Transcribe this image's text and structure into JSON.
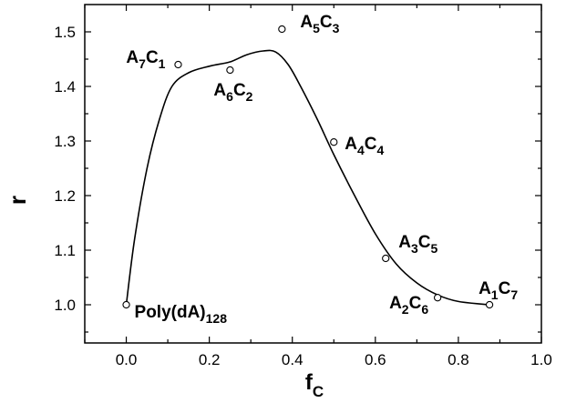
{
  "chart_data": {
    "type": "scatter",
    "title": "",
    "xlabel": {
      "main": "f",
      "sub": "C"
    },
    "ylabel": "r",
    "xlim": [
      -0.1,
      1.0
    ],
    "ylim": [
      0.93,
      1.55
    ],
    "x_ticks": [
      0.0,
      0.2,
      0.4,
      0.6,
      0.8,
      1.0
    ],
    "x_tick_labels": [
      "0.0",
      "0.2",
      "0.4",
      "0.6",
      "0.8",
      "1.0"
    ],
    "y_ticks": [
      1.0,
      1.1,
      1.2,
      1.3,
      1.4,
      1.5
    ],
    "y_tick_labels": [
      "1.0",
      "1.1",
      "1.2",
      "1.3",
      "1.4",
      "1.5"
    ],
    "grid": false,
    "points": [
      {
        "x": 0.0,
        "y": 1.0,
        "label": [
          [
            "Poly(dA)",
            false
          ],
          [
            "128",
            true
          ]
        ]
      },
      {
        "x": 0.125,
        "y": 1.44,
        "label": [
          [
            "A",
            false
          ],
          [
            "7",
            true
          ],
          [
            "C",
            false
          ],
          [
            "1",
            true
          ]
        ]
      },
      {
        "x": 0.25,
        "y": 1.43,
        "label": [
          [
            "A",
            false
          ],
          [
            "6",
            true
          ],
          [
            "C",
            false
          ],
          [
            "2",
            true
          ]
        ]
      },
      {
        "x": 0.375,
        "y": 1.505,
        "label": [
          [
            "A",
            false
          ],
          [
            "5",
            true
          ],
          [
            "C",
            false
          ],
          [
            "3",
            true
          ]
        ]
      },
      {
        "x": 0.5,
        "y": 1.298,
        "label": [
          [
            "A",
            false
          ],
          [
            "4",
            true
          ],
          [
            "C",
            false
          ],
          [
            "4",
            true
          ]
        ]
      },
      {
        "x": 0.625,
        "y": 1.085,
        "label": [
          [
            "A",
            false
          ],
          [
            "3",
            true
          ],
          [
            "C",
            false
          ],
          [
            "5",
            true
          ]
        ]
      },
      {
        "x": 0.75,
        "y": 1.013,
        "label": [
          [
            "A",
            false
          ],
          [
            "2",
            true
          ],
          [
            "C",
            false
          ],
          [
            "6",
            true
          ]
        ]
      },
      {
        "x": 0.875,
        "y": 1.0,
        "label": [
          [
            "A",
            false
          ],
          [
            "1",
            true
          ],
          [
            "C",
            false
          ],
          [
            "7",
            true
          ]
        ]
      }
    ],
    "curve": [
      [
        0.0,
        1.0
      ],
      [
        0.02,
        1.12
      ],
      [
        0.05,
        1.25
      ],
      [
        0.08,
        1.34
      ],
      [
        0.11,
        1.4
      ],
      [
        0.15,
        1.425
      ],
      [
        0.2,
        1.437
      ],
      [
        0.25,
        1.445
      ],
      [
        0.29,
        1.458
      ],
      [
        0.33,
        1.465
      ],
      [
        0.36,
        1.463
      ],
      [
        0.39,
        1.44
      ],
      [
        0.42,
        1.4
      ],
      [
        0.46,
        1.34
      ],
      [
        0.5,
        1.275
      ],
      [
        0.55,
        1.2
      ],
      [
        0.6,
        1.13
      ],
      [
        0.65,
        1.075
      ],
      [
        0.7,
        1.04
      ],
      [
        0.75,
        1.018
      ],
      [
        0.8,
        1.006
      ],
      [
        0.875,
        1.0
      ]
    ]
  }
}
